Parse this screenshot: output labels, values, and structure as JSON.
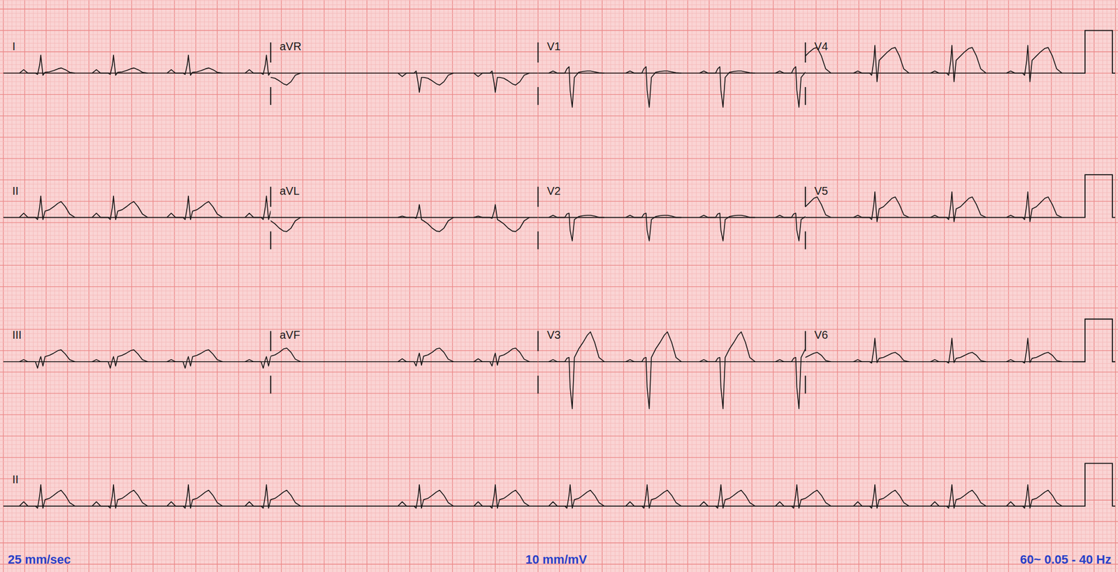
{
  "chart_data": {
    "type": "ecg",
    "grid": true,
    "color": "#161616",
    "xlim": [
      0,
      10
    ],
    "ylim": [
      -1.7,
      1.68
    ],
    "calibration": 1,
    "footer": [
      "25 mm/sec",
      "10 mm/mV",
      "60~ 0.05 - 40 Hz"
    ],
    "beat_times": [
      0.35,
      1.03,
      1.73,
      2.46,
      3.89,
      4.6,
      5.3,
      6.02,
      6.71,
      7.42,
      8.15,
      8.87,
      9.58
    ],
    "offsets": [
      -0.2,
      -0.16,
      -0.12,
      -0.05,
      -0.03,
      -0.01,
      0,
      0.02,
      0.04,
      0.08,
      0.12,
      0.16,
      0.19,
      0.23,
      0.27,
      0.32
    ],
    "leads": [
      {
        "name": "I",
        "start": 0,
        "end": 2.5,
        "values": [
          0,
          0.08,
          0,
          0,
          -0.03,
          0.2,
          0.42,
          -0.05,
          0.02,
          0.03,
          0.06,
          0.1,
          0.12,
          0.08,
          0.02,
          0
        ]
      },
      {
        "name": "II",
        "start": 0,
        "end": 2.5,
        "values": [
          0,
          0.1,
          0,
          0,
          -0.05,
          0.25,
          0.5,
          -0.05,
          0.15,
          0.18,
          0.25,
          0.33,
          0.37,
          0.25,
          0.08,
          0
        ]
      },
      {
        "name": "III",
        "start": 0,
        "end": 2.5,
        "values": [
          0,
          0.05,
          0,
          0,
          -0.15,
          0.05,
          0.12,
          -0.1,
          0.12,
          0.15,
          0.2,
          0.26,
          0.28,
          0.18,
          0.05,
          0
        ]
      },
      {
        "name": "aVR",
        "start": 2.5,
        "end": 5,
        "values": [
          0,
          -0.08,
          0,
          0,
          0.05,
          -0.25,
          -0.45,
          -0.1,
          -0.1,
          -0.12,
          -0.18,
          -0.25,
          -0.28,
          -0.2,
          -0.05,
          0
        ]
      },
      {
        "name": "aVL",
        "start": 2.5,
        "end": 5,
        "values": [
          0,
          0.03,
          0,
          0,
          -0.02,
          0.15,
          0.3,
          -0.05,
          -0.08,
          -0.15,
          -0.25,
          -0.32,
          -0.33,
          -0.25,
          -0.08,
          0
        ]
      },
      {
        "name": "aVF",
        "start": 2.5,
        "end": 5,
        "values": [
          0,
          0.07,
          0,
          0,
          -0.1,
          0.12,
          0.2,
          -0.08,
          0.13,
          0.16,
          0.22,
          0.3,
          0.32,
          0.22,
          0.06,
          0
        ]
      },
      {
        "name": "V1",
        "start": 5,
        "end": 7.5,
        "values": [
          0,
          0.05,
          0,
          0,
          0.1,
          0.15,
          -0.4,
          -0.8,
          -0.1,
          0.02,
          0.04,
          0.05,
          0.05,
          0.03,
          0.01,
          0
        ]
      },
      {
        "name": "V2",
        "start": 5,
        "end": 7.5,
        "values": [
          0,
          0.05,
          0,
          0,
          0.08,
          0.1,
          -0.3,
          -0.55,
          -0.05,
          0.02,
          0.04,
          0.05,
          0.05,
          0.03,
          0,
          0
        ]
      },
      {
        "name": "V3",
        "start": 5,
        "end": 7.5,
        "values": [
          0,
          0.05,
          0,
          0,
          0.08,
          0.1,
          -0.6,
          -1.1,
          0.1,
          0.3,
          0.45,
          0.62,
          0.7,
          0.45,
          0.1,
          0
        ]
      },
      {
        "name": "V4",
        "start": 7.5,
        "end": 10,
        "values": [
          0,
          0.05,
          0,
          0,
          -0.05,
          0.3,
          0.65,
          -0.2,
          0.3,
          0.4,
          0.5,
          0.58,
          0.6,
          0.4,
          0.1,
          0
        ]
      },
      {
        "name": "V5",
        "start": 7.5,
        "end": 10,
        "values": [
          0,
          0.05,
          0,
          0,
          -0.05,
          0.3,
          0.6,
          -0.1,
          0.2,
          0.25,
          0.35,
          0.45,
          0.48,
          0.3,
          0.06,
          0
        ]
      },
      {
        "name": "V6",
        "start": 7.5,
        "end": 10,
        "values": [
          0,
          0.05,
          0,
          0,
          -0.03,
          0.3,
          0.55,
          -0.02,
          0.08,
          0.1,
          0.15,
          0.2,
          0.22,
          0.15,
          0.03,
          0
        ]
      },
      {
        "name": "II",
        "start": 0,
        "end": 10,
        "values": [
          0,
          0.1,
          0,
          0,
          -0.05,
          0.25,
          0.5,
          -0.05,
          0.15,
          0.18,
          0.25,
          0.33,
          0.37,
          0.25,
          0.08,
          0
        ]
      }
    ]
  }
}
